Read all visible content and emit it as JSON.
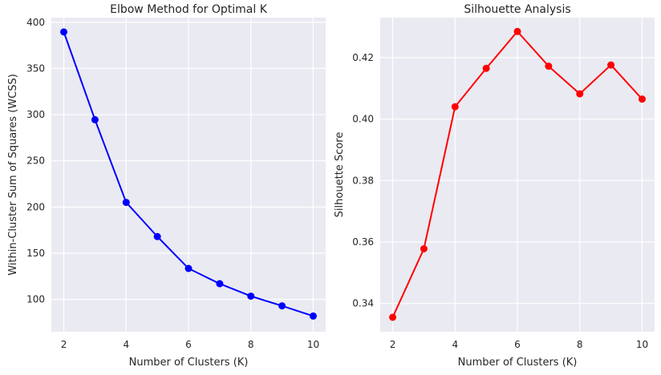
{
  "chart_data": [
    {
      "type": "line",
      "title": "Elbow Method for Optimal K",
      "xlabel": "Number of Clusters (K)",
      "ylabel": "Within-Cluster Sum of Squares (WCSS)",
      "x": [
        2,
        3,
        4,
        5,
        6,
        7,
        8,
        9,
        10
      ],
      "series": [
        {
          "values": [
            389.5,
            294.5,
            205.0,
            168.0,
            133.5,
            117.0,
            103.5,
            93.0,
            82.0
          ],
          "color": "#0000ff"
        }
      ],
      "xlim": [
        1.6,
        10.4
      ],
      "ylim": [
        65,
        405
      ],
      "xticks": [
        2,
        4,
        6,
        8,
        10
      ],
      "xtick_labels": [
        "2",
        "4",
        "6",
        "8",
        "10"
      ],
      "yticks": [
        100,
        150,
        200,
        250,
        300,
        350,
        400
      ],
      "ytick_labels": [
        "100",
        "150",
        "200",
        "250",
        "300",
        "350",
        "400"
      ],
      "grid": true,
      "marker": "circle"
    },
    {
      "type": "line",
      "title": "Silhouette Analysis",
      "xlabel": "Number of Clusters (K)",
      "ylabel": "Silhouette Score",
      "x": [
        2,
        3,
        4,
        5,
        6,
        7,
        8,
        9,
        10
      ],
      "series": [
        {
          "values": [
            0.3355,
            0.3578,
            0.404,
            0.4165,
            0.4285,
            0.4172,
            0.4082,
            0.4176,
            0.4065
          ],
          "color": "#ff0000"
        }
      ],
      "xlim": [
        1.6,
        10.4
      ],
      "ylim": [
        0.3308,
        0.433
      ],
      "xticks": [
        2,
        4,
        6,
        8,
        10
      ],
      "xtick_labels": [
        "2",
        "4",
        "6",
        "8",
        "10"
      ],
      "yticks": [
        0.34,
        0.36,
        0.38,
        0.4,
        0.42
      ],
      "ytick_labels": [
        "0.34",
        "0.36",
        "0.38",
        "0.40",
        "0.42"
      ],
      "grid": true,
      "marker": "circle"
    }
  ]
}
